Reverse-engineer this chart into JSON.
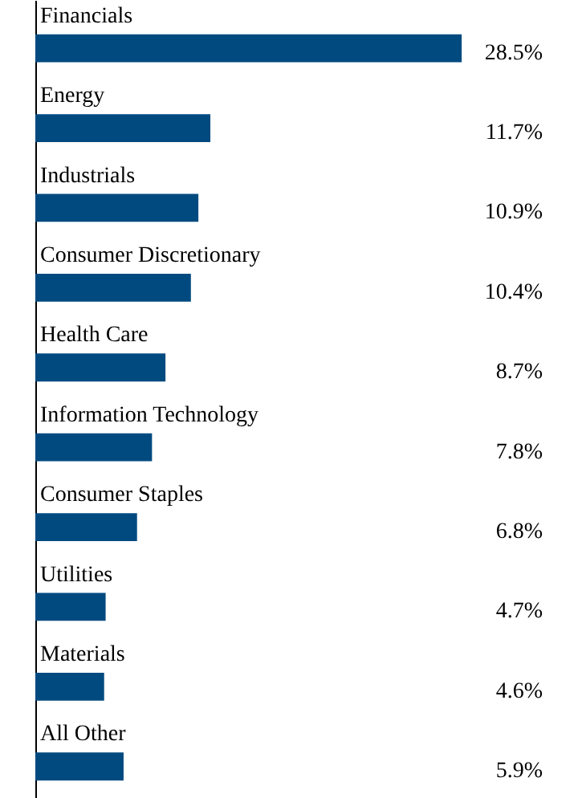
{
  "chart_data": {
    "type": "bar",
    "orientation": "horizontal",
    "value_labels": [
      "28.5%",
      "11.7%",
      "10.9%",
      "10.4%",
      "8.7%",
      "7.8%",
      "6.8%",
      "4.7%",
      "4.6%",
      "5.9%"
    ],
    "categories": [
      "Financials",
      "Energy",
      "Industrials",
      "Consumer Discretionary",
      "Health Care",
      "Information Technology",
      "Consumer Staples",
      "Utilities",
      "Materials",
      "All Other"
    ],
    "values": [
      28.5,
      11.7,
      10.9,
      10.4,
      8.7,
      7.8,
      6.8,
      4.7,
      4.6,
      5.9
    ],
    "color": "#004a80",
    "grid": false
  }
}
